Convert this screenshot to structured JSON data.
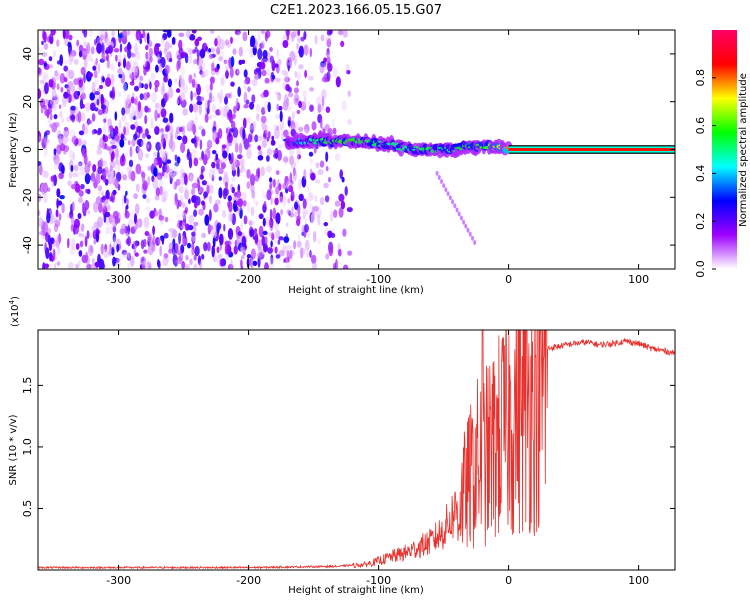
{
  "title": "C2E1.2023.166.05.15.G07",
  "chart_data": [
    {
      "type": "heatmap",
      "xlabel": "Height of straight line (km)",
      "ylabel": "Frequency (Hz)",
      "xlim": [
        -362,
        128
      ],
      "ylim": [
        -50,
        50
      ],
      "x_ticks": [
        -300,
        -200,
        -100,
        0,
        100
      ],
      "y_ticks": [
        -40,
        -20,
        0,
        20,
        40
      ],
      "colorbar": {
        "label": "Normalized spectral amplitude",
        "range": [
          0,
          1
        ],
        "ticks": [
          "0.0",
          "0.2",
          "0.4",
          "0.6",
          "0.8"
        ],
        "colormap": [
          "#ffffff",
          "#9d00ff",
          "#0000ff",
          "#00ffff",
          "#00ff00",
          "#ffff00",
          "#ff0000",
          "#ff0066"
        ]
      },
      "noise_region_x": [
        -362,
        -120
      ],
      "signal_track": [
        {
          "x": -170,
          "f": 3.0,
          "amp": 0.3
        },
        {
          "x": -150,
          "f": 3.5,
          "amp": 0.5
        },
        {
          "x": -130,
          "f": 3.5,
          "amp": 0.6
        },
        {
          "x": -110,
          "f": 3.0,
          "amp": 0.55
        },
        {
          "x": -90,
          "f": 2.0,
          "amp": 0.5
        },
        {
          "x": -75,
          "f": 0.0,
          "amp": 0.5
        },
        {
          "x": -60,
          "f": 0.0,
          "amp": 0.55
        },
        {
          "x": -45,
          "f": 0.0,
          "amp": 0.5
        },
        {
          "x": -30,
          "f": 1.5,
          "amp": 0.6
        },
        {
          "x": -15,
          "f": 1.5,
          "amp": 0.6
        },
        {
          "x": 0,
          "f": 0.5,
          "amp": 0.8
        },
        {
          "x": 128,
          "f": 0.0,
          "amp": 1.0
        }
      ],
      "line_start_x": 0
    },
    {
      "type": "line",
      "xlabel": "Height of straight line (km)",
      "ylabel": "SNR (10 * v/v)",
      "y_multiplier": "(x10",
      "y_multiplier_exp": "4",
      "y_multiplier_close": ")",
      "xlim": [
        -362,
        128
      ],
      "ylim": [
        0,
        1.95
      ],
      "x_ticks": [
        -300,
        -200,
        -100,
        0,
        100
      ],
      "y_ticks": [
        "0.5",
        "1.0",
        "1.5"
      ],
      "y_tick_values": [
        0.5,
        1.0,
        1.5
      ],
      "series_color": "#e8302c",
      "series": [
        {
          "x": [
            -362,
            -300,
            -200,
            -130,
            -110,
            -100,
            -90,
            -80,
            -70,
            -60,
            -50,
            -45,
            -40,
            -35,
            -30,
            -25,
            -20,
            -15,
            -10,
            -5,
            0,
            5,
            10,
            15,
            20,
            25,
            30,
            40,
            50,
            60,
            70,
            80,
            90,
            100,
            110,
            120,
            128
          ],
          "y": [
            0.02,
            0.02,
            0.02,
            0.03,
            0.05,
            0.08,
            0.12,
            0.15,
            0.2,
            0.25,
            0.35,
            0.45,
            0.55,
            0.7,
            0.85,
            1.0,
            1.05,
            1.1,
            1.2,
            1.3,
            1.4,
            1.5,
            1.55,
            1.6,
            1.7,
            1.75,
            1.8,
            1.82,
            1.84,
            1.85,
            1.83,
            1.84,
            1.86,
            1.84,
            1.8,
            1.78,
            1.76
          ]
        }
      ]
    }
  ]
}
